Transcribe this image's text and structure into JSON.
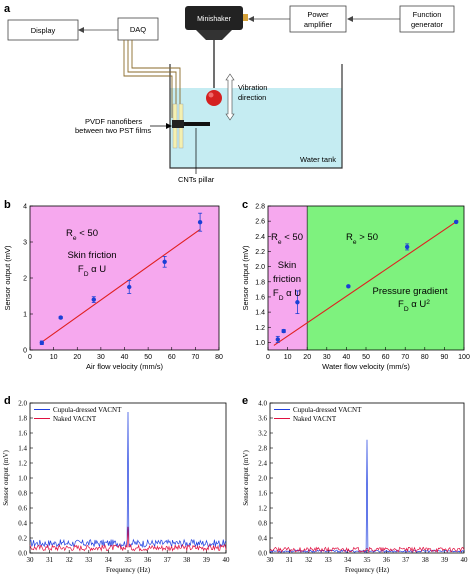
{
  "panels": {
    "a": "a",
    "b": "b",
    "c": "c",
    "d": "d",
    "e": "e"
  },
  "schematic": {
    "display": "Display",
    "daq": "DAQ",
    "minishaker": "Minishaker",
    "amplifier_1": "Power",
    "amplifier_2": "amplifier",
    "generator_1": "Function",
    "generator_2": "generator",
    "vibration_1": "Vibration",
    "vibration_2": "direction",
    "pvdf_1": "PVDF nanofibers",
    "pvdf_2": "between two PST films",
    "pillar": "CNTs pillar",
    "tank": "Water tank",
    "colors": {
      "water": "#c5ecf2",
      "ball": "#d42020",
      "box_stroke": "#444444"
    }
  },
  "chart_data": [
    {
      "id": "b",
      "type": "scatter",
      "xlabel": "Air flow velocity (mm/s)",
      "ylabel": "Sensor output (mV)",
      "xlim": [
        0,
        80
      ],
      "ylim": [
        0,
        4
      ],
      "xticks": [
        0,
        10,
        20,
        30,
        40,
        50,
        60,
        70,
        80
      ],
      "yticks": [
        0,
        1,
        2,
        3,
        4
      ],
      "x": [
        5,
        13,
        27,
        42,
        57,
        72
      ],
      "y": [
        0.2,
        0.9,
        1.4,
        1.75,
        2.45,
        3.55
      ],
      "yerr": [
        0.05,
        0.03,
        0.08,
        0.18,
        0.15,
        0.25
      ],
      "fit": [
        [
          5,
          0.22
        ],
        [
          72,
          3.35
        ]
      ],
      "background": "#f6a8ee",
      "point_color": "#1a3fd6",
      "fit_color": "#e02020",
      "annotations": {
        "re_main": "R",
        "re_sub": "e",
        "re_rest": " < 50",
        "regime": "Skin friction",
        "law_main": "F",
        "law_sub": "D",
        "law_rest": " α U"
      }
    },
    {
      "id": "c",
      "type": "scatter",
      "xlabel": "Water flow velocity (mm/s)",
      "ylabel": "Sensor output (mV)",
      "xlim": [
        0,
        100
      ],
      "ylim": [
        0.9,
        2.8
      ],
      "xticks": [
        0,
        10,
        20,
        30,
        40,
        50,
        60,
        70,
        80,
        90,
        100
      ],
      "yticks": [
        1.0,
        1.2,
        1.4,
        1.6,
        1.8,
        2.0,
        2.2,
        2.4,
        2.6,
        2.8
      ],
      "x": [
        5,
        8,
        15,
        41,
        71,
        96
      ],
      "y": [
        1.04,
        1.15,
        1.53,
        1.74,
        2.26,
        2.59
      ],
      "yerr": [
        0.04,
        0.02,
        0.15,
        0.01,
        0.04,
        0.01
      ],
      "fit": [
        [
          3,
          0.96
        ],
        [
          97,
          2.61
        ]
      ],
      "split_x": 20,
      "background_left": "#f6a8ee",
      "background_right": "#7ef27e",
      "point_color": "#1a3fd6",
      "fit_color": "#e02020",
      "annotations": {
        "left_re_main": "R",
        "left_re_sub": "e",
        "left_re_rest": " < 50",
        "left_regime_1": "Skin",
        "left_regime_2": "friction",
        "left_law_main": "F",
        "left_law_sub": "D",
        "left_law_rest": " α U",
        "right_re_main": "R",
        "right_re_sub": "e",
        "right_re_rest": " > 50",
        "right_regime": "Pressure gradient",
        "right_law_main": "F",
        "right_law_sub": "D",
        "right_law_rest": " α U",
        "right_law_sup": "2"
      }
    },
    {
      "id": "d",
      "type": "line",
      "xlabel": "Frequency (Hz)",
      "ylabel": "Sensor output (mV)",
      "xlim": [
        30,
        40
      ],
      "ylim": [
        0,
        2.0
      ],
      "xticks": [
        30,
        31,
        32,
        33,
        34,
        35,
        36,
        37,
        38,
        39,
        40
      ],
      "yticks": [
        0.0,
        0.2,
        0.4,
        0.6,
        0.8,
        1.0,
        1.2,
        1.4,
        1.6,
        1.8,
        2.0
      ],
      "peak_x": 35,
      "series": [
        {
          "name": "Cupula-dressed VACNT",
          "color": "#1f3fe0",
          "peak": 1.88,
          "baseline": 0.13,
          "noise": 0.05
        },
        {
          "name": "Naked VACNT",
          "color": "#e01040",
          "peak": 0.35,
          "baseline": 0.07,
          "noise": 0.04
        }
      ]
    },
    {
      "id": "e",
      "type": "line",
      "xlabel": "Frequency (Hz)",
      "ylabel": "Sensor output (mV)",
      "xlim": [
        30,
        40
      ],
      "ylim": [
        0,
        4.0
      ],
      "xticks": [
        30,
        31,
        32,
        33,
        34,
        35,
        36,
        37,
        38,
        39,
        40
      ],
      "yticks": [
        0.0,
        0.4,
        0.8,
        1.2,
        1.6,
        2.0,
        2.4,
        2.8,
        3.2,
        3.6,
        4.0
      ],
      "peak_x": 35,
      "series": [
        {
          "name": "Cupula-dressed VACNT",
          "color": "#1f3fe0",
          "peak": 3.02,
          "baseline": 0.05,
          "noise": 0.03
        },
        {
          "name": "Naked VACNT",
          "color": "#e01040",
          "peak": 0.12,
          "baseline": 0.09,
          "noise": 0.06
        }
      ]
    }
  ]
}
